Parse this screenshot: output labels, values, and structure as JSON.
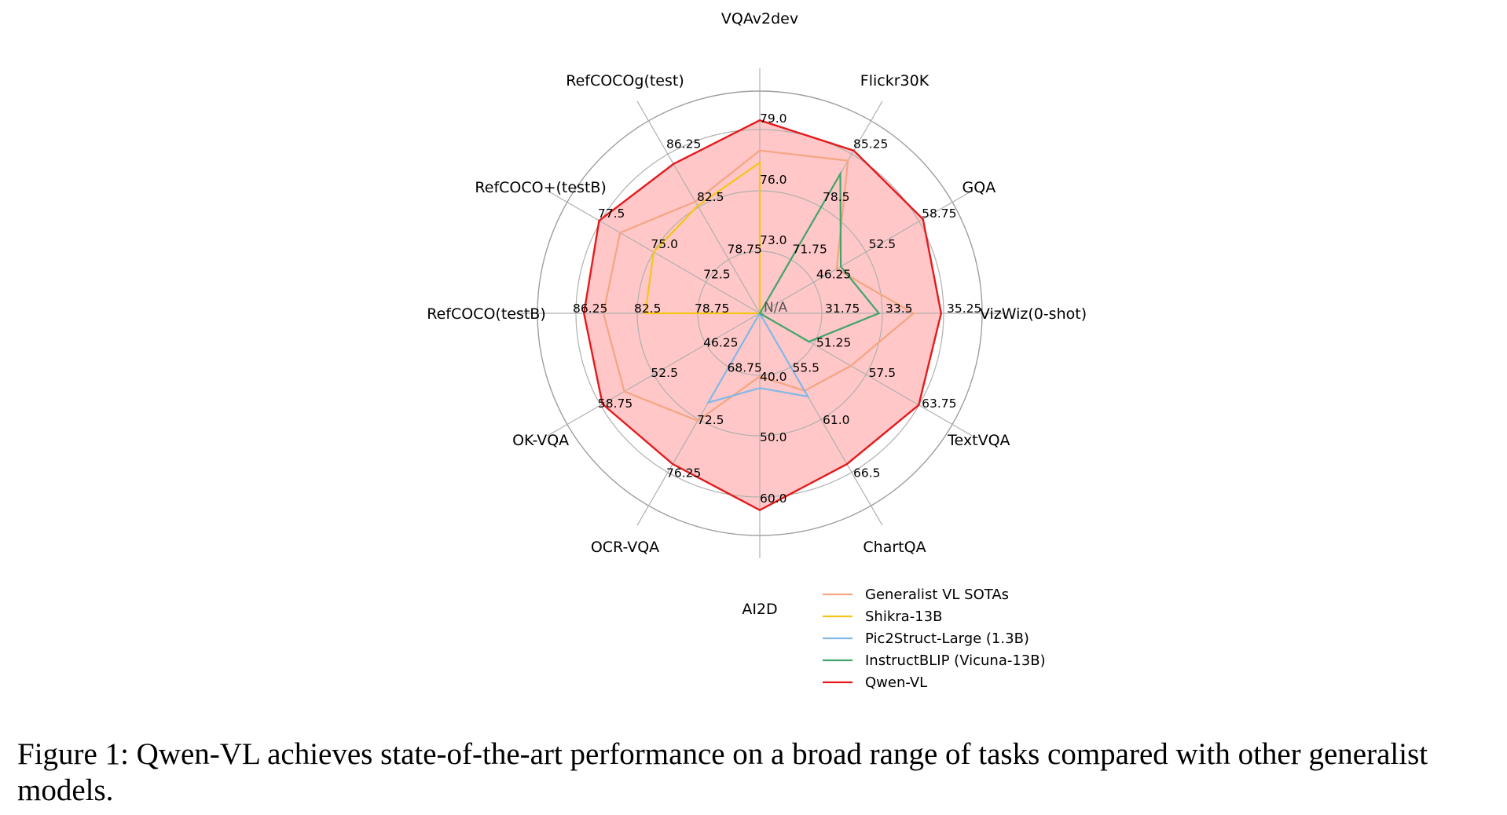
{
  "chart_data": {
    "type": "radar",
    "axes": [
      "VQAv2dev",
      "Flickr30K",
      "GQA",
      "VizWiz(0-shot)",
      "TextVQA",
      "ChartQA",
      "AI2D",
      "OCR-VQA",
      "OK-VQA",
      "RefCOCO(testB)",
      "RefCOCO+(testB)",
      "RefCOCOg(test)"
    ],
    "tick_labels": [
      [
        "73.0",
        "76.0",
        "79.0"
      ],
      [
        "71.75",
        "78.5",
        "85.25"
      ],
      [
        "46.25",
        "52.5",
        "58.75"
      ],
      [
        "31.75",
        "33.5",
        "35.25"
      ],
      [
        "51.25",
        "57.5",
        "63.75"
      ],
      [
        "55.5",
        "61.0",
        "66.5"
      ],
      [
        "40.0",
        "50.0",
        "60.0"
      ],
      [
        "68.75",
        "72.5",
        "76.25"
      ],
      [
        "46.25",
        "52.5",
        "58.75"
      ],
      [
        "78.75",
        "82.5",
        "86.25"
      ],
      [
        "72.5",
        "75.0",
        "77.5"
      ],
      [
        "78.75",
        "82.5",
        "86.25"
      ]
    ],
    "center_label": "N/A",
    "series": [
      {
        "name": "Generalist VL SOTAs",
        "color": "#f4a582",
        "fill": true,
        "values": [
          78.0,
          84.5,
          49.0,
          34.4,
          55.7,
          58.0,
          40.2,
          72.6,
          56.0,
          84.6,
          76.6,
          82.9
        ]
      },
      {
        "name": "Shikra-13B",
        "color": "#f5c518",
        "fill": false,
        "values": [
          77.4,
          null,
          null,
          null,
          null,
          null,
          null,
          null,
          null,
          82.0,
          75.0,
          82.6
        ]
      },
      {
        "name": "Pic2Struct-Large (1.3B)",
        "color": "#80b8e8",
        "fill": false,
        "values": [
          null,
          null,
          null,
          null,
          null,
          58.6,
          42.1,
          71.3,
          null,
          null,
          null,
          null
        ]
      },
      {
        "name": "InstructBLIP (Vicuna-13B)",
        "color": "#3fa56a",
        "fill": false,
        "values": [
          null,
          82.8,
          49.5,
          33.4,
          50.7,
          null,
          null,
          null,
          null,
          null,
          null,
          null
        ]
      },
      {
        "name": "Qwen-VL",
        "color": "#e41a1c",
        "fill": true,
        "fillColor": "#ffc7c7",
        "values": [
          79.5,
          85.8,
          59.3,
          35.2,
          63.8,
          65.7,
          62.3,
          75.7,
          58.6,
          85.8,
          77.6,
          85.6
        ]
      }
    ]
  },
  "caption": "Figure 1: Qwen-VL achieves state-of-the-art performance on a broad range of tasks compared with other generalist models."
}
